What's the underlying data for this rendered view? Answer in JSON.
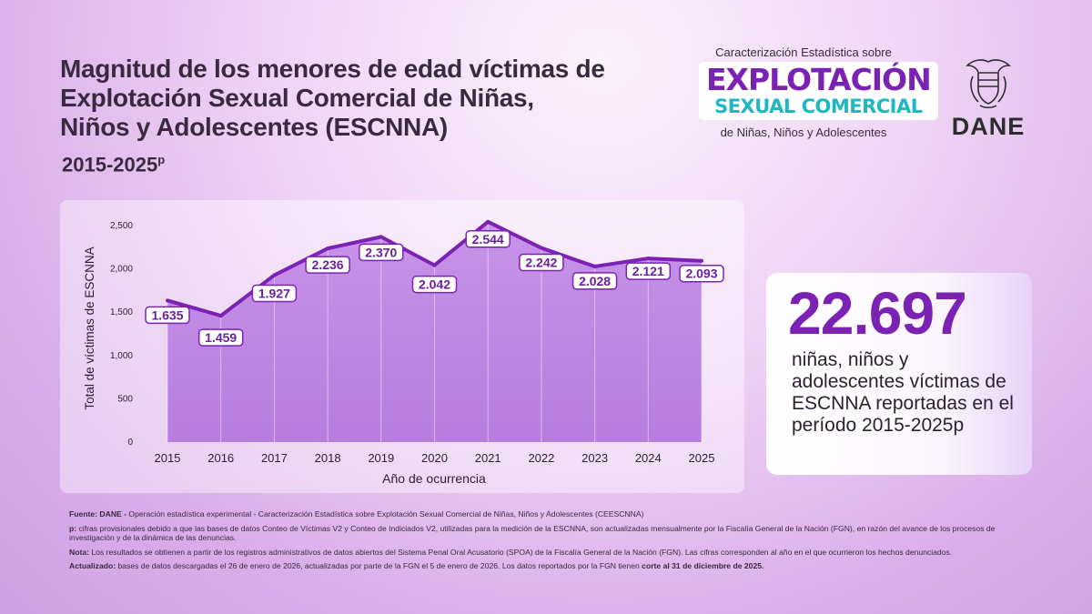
{
  "header": {
    "title": "Magnitud de los menores de edad víctimas de Explotación Sexual Comercial de Niñas, Niños y Adolescentes (ESCNNA)",
    "period": "2015-2025",
    "period_sup": "p"
  },
  "logo": {
    "top": "Caracterización Estadística sobre",
    "line1": "EXPLOTACIÓN",
    "line2": "SEXUAL COMERCIAL",
    "bottom": "de Niñas, Niños y Adolescentes",
    "line1_color": "#7b22b5",
    "line2_color": "#1fb7c4"
  },
  "dane": {
    "text": "DANE",
    "icon": "coat-of-arms-icon"
  },
  "chart_data": {
    "type": "area",
    "categories": [
      "2015",
      "2016",
      "2017",
      "2018",
      "2019",
      "2020",
      "2021",
      "2022",
      "2023",
      "2024",
      "2025"
    ],
    "values": [
      1635,
      1459,
      1927,
      2236,
      2370,
      2042,
      2544,
      2242,
      2028,
      2121,
      2093
    ],
    "data_labels": [
      "1.635",
      "1.459",
      "1.927",
      "2.236",
      "2.370",
      "2.042",
      "2.544",
      "2.242",
      "2.028",
      "2.121",
      "2.093"
    ],
    "ylim": [
      0,
      2500
    ],
    "yticks": [
      0,
      500,
      1000,
      1500,
      2000,
      2500
    ],
    "ytick_labels": [
      "0",
      "500",
      "1,000",
      "1,500",
      "2,000",
      "2,500"
    ],
    "xlabel": "Año de ocurrencia",
    "ylabel": "Total de víctimas de ESCNNA",
    "line_color": "#7b22b5",
    "fill_color": "#c28be6",
    "grid": false
  },
  "stat": {
    "number": "22.697",
    "text": "niñas, niños y adolescentes víctimas de ESCNNA reportadas en el período 2015-2025p"
  },
  "notes": {
    "fuente_label": "Fuente: DANE -",
    "fuente_text": " Operación estadística experimental - Caracterización Estadística sobre Explotación Sexual Comercial de Niñas, Niños y Adolescentes (CEESCNNA)",
    "p_label": "p:",
    "p_text": " cifras provisionales debido a que las bases de datos Conteo de Víctimas V2 y Conteo de Indiciados V2, utilizadas para la medición de la ESCNNA, son actualizadas mensualmente por la Fiscalía General de la Nación (FGN), en razón del avance de los procesos de investigación y de la dinámica de las denuncias.",
    "nota_label": "Nota:",
    "nota_text": " Los resultados se obtienen a partir de los registros administrativos de datos abiertos del Sistema Penal Oral Acusatorio (SPOA) de la Fiscalía General de la Nación (FGN). Las cifras corresponden al año en el que ocurrieron los hechos denunciados.",
    "actualizado_label": "Actualizado:",
    "actualizado_text": " bases de datos descargadas el 26 de enero de 2026, actualizadas por parte de la FGN el 5 de enero de 2026. Los datos reportados por la FGN tienen ",
    "actualizado_bold": "corte al 31 de diciembre de 2025."
  }
}
